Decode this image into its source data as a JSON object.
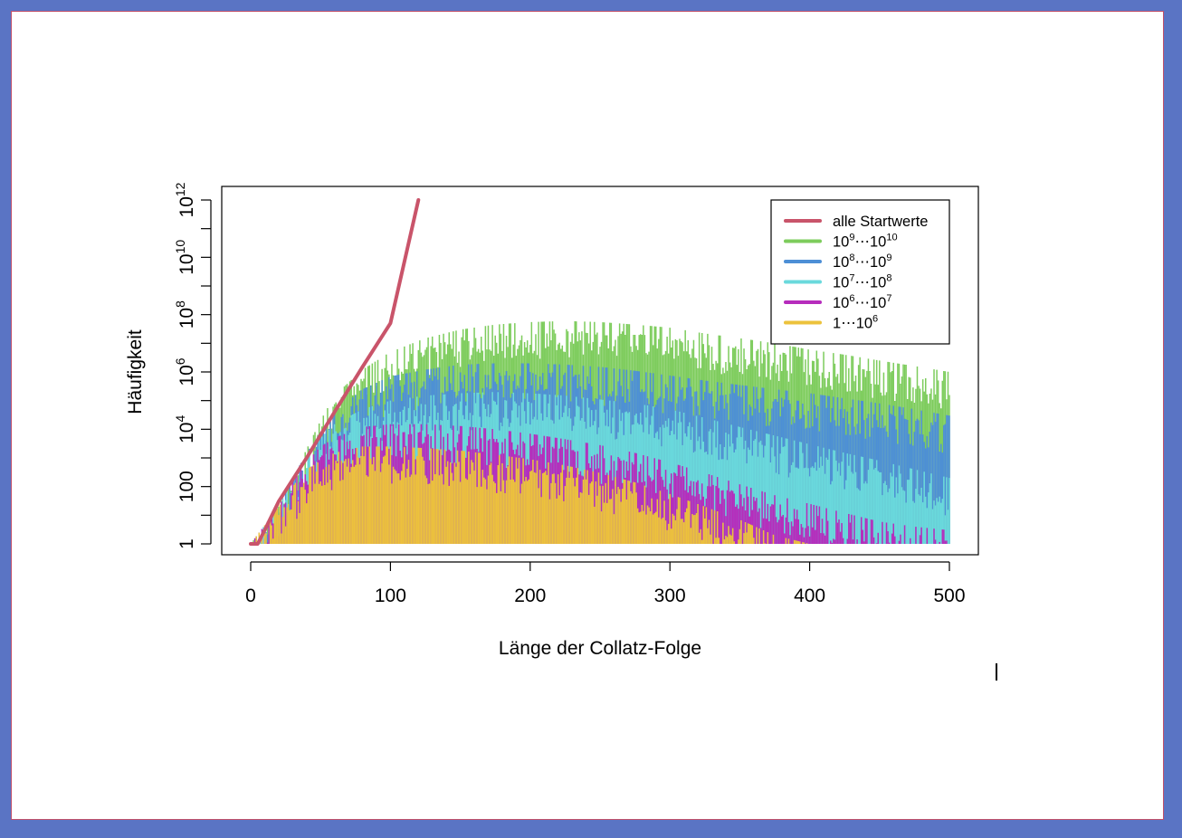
{
  "chart_data": {
    "type": "bar",
    "xlabel": "Länge der Collatz-Folge",
    "ylabel": "Häufigkeit",
    "xlim": [
      0,
      500
    ],
    "x_ticks": [
      "0",
      "100",
      "200",
      "300",
      "400",
      "500"
    ],
    "y_scale": "log",
    "ylim": [
      1,
      1000000000000.0
    ],
    "y_ticks": [
      {
        "value": 1,
        "label": "1"
      },
      {
        "value": 100,
        "label": "100"
      },
      {
        "value": 10000,
        "base": "10",
        "exp": "4"
      },
      {
        "value": 1000000,
        "base": "10",
        "exp": "6"
      },
      {
        "value": 100000000,
        "base": "10",
        "exp": "8"
      },
      {
        "value": 10000000000,
        "base": "10",
        "exp": "10"
      },
      {
        "value": 1000000000000,
        "base": "10",
        "exp": "12"
      }
    ],
    "grid": false,
    "legend_position": "top-right",
    "legend": [
      {
        "label": "alle Startwerte",
        "color": "#c9546a"
      },
      {
        "b1": "10",
        "e1": "9",
        "sep": "⋯",
        "b2": "10",
        "e2": "10",
        "color": "#7dcc5c"
      },
      {
        "b1": "10",
        "e1": "8",
        "sep": "⋯",
        "b2": "10",
        "e2": "9",
        "color": "#4d8fd6"
      },
      {
        "b1": "10",
        "e1": "7",
        "sep": "⋯",
        "b2": "10",
        "e2": "8",
        "color": "#6ad9dc"
      },
      {
        "b1": "10",
        "e1": "6",
        "sep": "⋯",
        "b2": "10",
        "e2": "7",
        "color": "#b62cbc"
      },
      {
        "b1": "1",
        "e1": "",
        "sep": "⋯",
        "b2": "10",
        "e2": "6",
        "color": "#ecc23c"
      }
    ],
    "series": [
      {
        "legend_index": 0,
        "type": "line",
        "x": [
          0,
          3,
          5,
          10,
          20,
          40,
          60,
          80,
          100,
          120
        ],
        "y": [
          1,
          1,
          1,
          3,
          30,
          1000,
          40000,
          1500000,
          50000000,
          1000000000000
        ]
      },
      {
        "legend_index": 1,
        "type": "bars",
        "color": "#7dcc5c",
        "envelope_x": [
          0,
          20,
          30,
          40,
          50,
          60,
          80,
          100,
          125,
          150,
          175,
          200,
          225,
          250,
          275,
          300,
          325,
          350,
          375,
          400,
          425,
          450,
          475,
          500
        ],
        "envelope_y": [
          1,
          20,
          200,
          2000,
          20000,
          150000,
          1200000,
          5000000,
          15000000,
          30000000,
          45000000,
          55000000,
          60000000,
          55000000,
          45000000,
          35000000,
          22000000,
          15000000,
          10000000,
          6000000,
          4000000,
          2500000,
          1600000,
          1000000
        ]
      },
      {
        "legend_index": 2,
        "type": "bars",
        "color": "#4d8fd6",
        "envelope_x": [
          0,
          20,
          30,
          40,
          50,
          60,
          80,
          100,
          125,
          150,
          175,
          200,
          225,
          250,
          275,
          300,
          325,
          350,
          375,
          400,
          425,
          450,
          475,
          500
        ],
        "envelope_y": [
          1,
          20,
          200,
          1500,
          8000,
          40000,
          250000,
          700000,
          1200000,
          1800000,
          2000000,
          2000000,
          1800000,
          1500000,
          1100000,
          750000,
          500000,
          350000,
          250000,
          180000,
          120000,
          80000,
          50000,
          30000
        ]
      },
      {
        "legend_index": 3,
        "type": "bars",
        "color": "#6ad9dc",
        "envelope_x": [
          0,
          20,
          30,
          40,
          50,
          60,
          80,
          100,
          125,
          150,
          175,
          200,
          225,
          250,
          275,
          300,
          325,
          350,
          375,
          400,
          425,
          450,
          475,
          500
        ],
        "envelope_y": [
          1,
          20,
          200,
          1000,
          5000,
          15000,
          50000,
          100000,
          150000,
          180000,
          200000,
          180000,
          150000,
          110000,
          80000,
          50000,
          25000,
          12000,
          6000,
          3000,
          1500,
          800,
          400,
          200
        ]
      },
      {
        "legend_index": 4,
        "type": "bars",
        "color": "#b62cbc",
        "envelope_x": [
          0,
          20,
          30,
          40,
          50,
          60,
          80,
          100,
          125,
          150,
          175,
          200,
          225,
          250,
          275,
          300,
          325,
          350,
          375,
          400,
          425,
          450,
          475,
          500
        ],
        "envelope_y": [
          1,
          20,
          150,
          700,
          2500,
          5000,
          12000,
          15000,
          15000,
          13000,
          10000,
          7000,
          4500,
          2800,
          1500,
          700,
          300,
          120,
          50,
          25,
          12,
          6,
          4,
          3
        ]
      },
      {
        "legend_index": 5,
        "type": "bars",
        "color": "#ecc23c",
        "envelope_x": [
          0,
          20,
          30,
          40,
          50,
          60,
          80,
          100,
          125,
          150,
          175,
          200,
          225,
          250,
          275,
          300,
          325,
          350,
          375,
          400,
          425,
          450,
          475,
          500
        ],
        "envelope_y": [
          1,
          20,
          100,
          400,
          800,
          1500,
          2500,
          2500,
          2200,
          1800,
          1300,
          900,
          550,
          300,
          140,
          55,
          20,
          7,
          2,
          1,
          1,
          1,
          1,
          1
        ]
      }
    ]
  }
}
